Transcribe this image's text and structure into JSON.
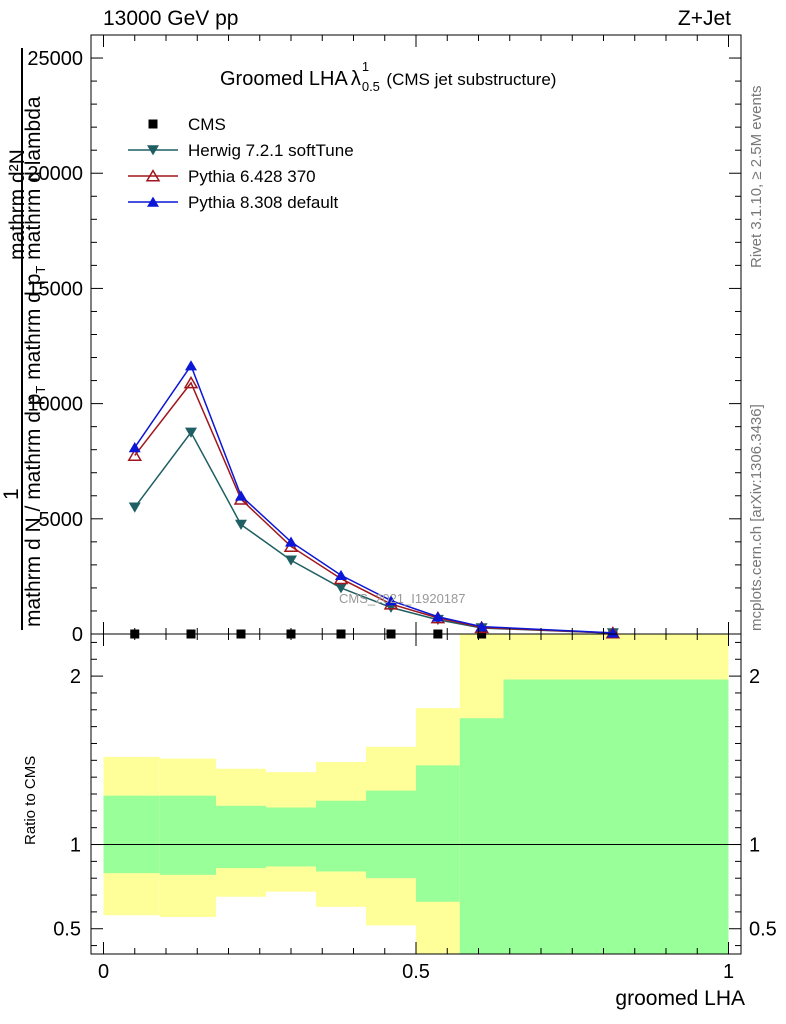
{
  "header": {
    "left_label": "13000 GeV pp",
    "right_label": "Z+Jet"
  },
  "side_labels": {
    "rivet": "Rivet 3.1.10, ≥ 2.5M events",
    "mcplots": "mcplots.cern.ch [arXiv:1306.3436]"
  },
  "watermark": "CMS_2021_I1920187",
  "colors": {
    "cms": "#000000",
    "herwig": "#1f5f63",
    "pythia6": "#a0161c",
    "pythia8": "#0b16d6",
    "band_inner": "#99ff99",
    "band_outer": "#ffff99"
  },
  "chart_data": [
    {
      "type": "line",
      "title": "Groomed LHA",
      "title_symbol": "λ",
      "title_superscript": "1",
      "title_subscript": "0.5",
      "subtitle": "(CMS jet substructure)",
      "ylabel_numerator": "mathrm d²N",
      "ylabel_sup": "1",
      "ylabel_line_a": "mathrm d N / mathrm d p",
      "ylabel_line_a_sub": "T",
      "ylabel_line_b": " mathrm d p",
      "ylabel_line_b_sub": "T",
      "ylabel_line_b_tail": " mathrm d lambda",
      "xlim": [
        -0.02,
        1.02
      ],
      "ylim": [
        0,
        26000
      ],
      "y_ticks": [
        0,
        5000,
        10000,
        15000,
        20000,
        25000
      ],
      "y_tick_labels": [
        "0",
        "5000",
        "10000",
        "15000",
        "20000",
        "25000"
      ],
      "legend_position": "top-left",
      "series": [
        {
          "name": "CMS",
          "marker": "square",
          "x": [
            0.05,
            0.14,
            0.22,
            0.3,
            0.38,
            0.46,
            0.535,
            0.605,
            0.815
          ],
          "y": [
            0,
            0,
            0,
            0,
            0,
            0,
            0,
            0,
            0
          ]
        },
        {
          "name": "Herwig 7.2.1 softTune",
          "marker": "triangle-down",
          "x": [
            0.05,
            0.14,
            0.22,
            0.3,
            0.38,
            0.46,
            0.535,
            0.605,
            0.815
          ],
          "y": [
            5500,
            8750,
            4750,
            3200,
            2000,
            1150,
            620,
            260,
            40
          ]
        },
        {
          "name": "Pythia 6.428 370",
          "marker": "triangle-up-open",
          "x": [
            0.05,
            0.14,
            0.22,
            0.3,
            0.38,
            0.46,
            0.535,
            0.605,
            0.815
          ],
          "y": [
            7750,
            10900,
            5850,
            3800,
            2400,
            1300,
            700,
            280,
            45
          ]
        },
        {
          "name": "Pythia 8.308 default",
          "marker": "triangle-up",
          "x": [
            0.05,
            0.14,
            0.22,
            0.3,
            0.38,
            0.46,
            0.535,
            0.605,
            0.815
          ],
          "y": [
            8100,
            11650,
            6000,
            4000,
            2550,
            1450,
            750,
            320,
            50
          ]
        }
      ]
    },
    {
      "type": "area",
      "ylabel": "Ratio to CMS",
      "xlabel": "groomed LHA",
      "xlim": [
        -0.02,
        1.02
      ],
      "ylim": [
        0.35,
        2.25
      ],
      "x_ticks": [
        0,
        0.5,
        1
      ],
      "x_tick_labels": [
        "0",
        "0.5",
        "1"
      ],
      "y_ticks": [
        0.5,
        1,
        2
      ],
      "y_tick_labels": [
        "0.5",
        "1",
        "2"
      ],
      "reference_line": 1,
      "bins": [
        0,
        0.09,
        0.18,
        0.26,
        0.34,
        0.42,
        0.5,
        0.57,
        0.64,
        1.0
      ],
      "inner_band_low": [
        0.83,
        0.82,
        0.86,
        0.87,
        0.84,
        0.8,
        0.66,
        0.3,
        0.3
      ],
      "inner_band_high": [
        1.29,
        1.29,
        1.23,
        1.22,
        1.26,
        1.32,
        1.47,
        1.75,
        1.98
      ],
      "outer_band_low": [
        0.58,
        0.57,
        0.69,
        0.72,
        0.63,
        0.52,
        0.3,
        0.3,
        0.3
      ],
      "outer_band_high": [
        1.52,
        1.51,
        1.45,
        1.43,
        1.49,
        1.58,
        1.81,
        2.4,
        2.4
      ]
    }
  ]
}
